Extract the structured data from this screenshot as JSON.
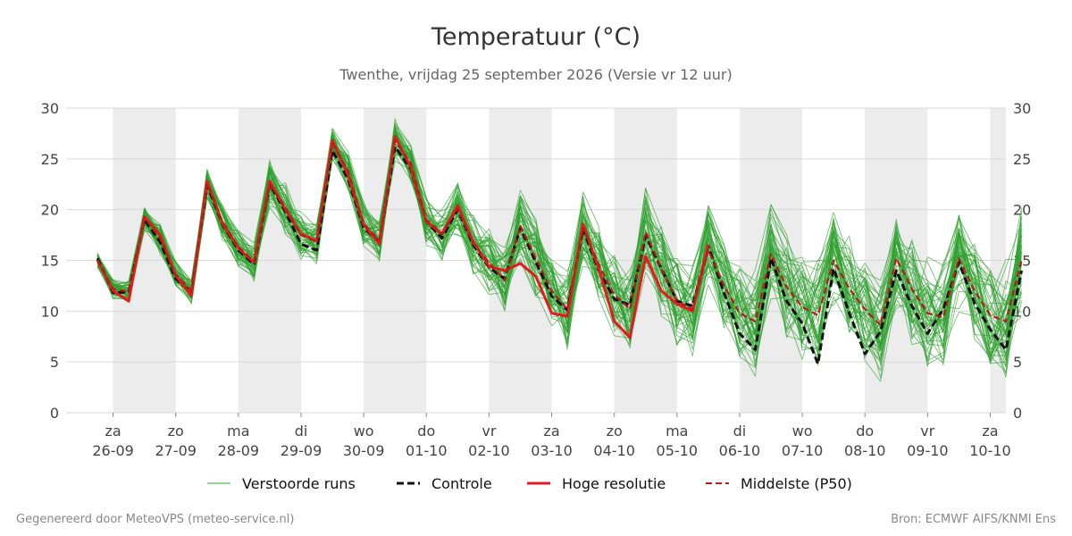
{
  "title": "Temperatuur (°C)",
  "subtitle": "Twenthe, vrijdag 25 september 2026 (Versie vr 12 uur)",
  "footer_left": "Gegenereerd door MeteoVPS (meteo-service.nl)",
  "footer_right": "Bron: ECMWF AIFS/KNMI Ens",
  "colors": {
    "ensemble": "#2ca02c",
    "control": "#111111",
    "high_res": "#e41a1c",
    "median": "#b71c1c",
    "band": "#ececec",
    "grid": "#d9d9d9"
  },
  "chart_data": {
    "type": "line",
    "xlabel": "",
    "ylabel": "",
    "x_unit": "days",
    "xlim": [
      -0.75,
      14.25
    ],
    "ylim": [
      0,
      30
    ],
    "yticks": [
      0,
      5,
      10,
      15,
      20,
      25,
      30
    ],
    "grid": true,
    "legend_position": "bottom",
    "weekend_bands": [
      [
        0,
        1
      ],
      [
        2,
        3
      ],
      [
        4,
        5
      ],
      [
        6,
        7
      ],
      [
        8,
        9
      ],
      [
        10,
        11
      ],
      [
        12,
        13
      ],
      [
        14,
        14.25
      ]
    ],
    "x_ticks": [
      {
        "day": "za",
        "date": "26-09"
      },
      {
        "day": "zo",
        "date": "27-09"
      },
      {
        "day": "ma",
        "date": "28-09"
      },
      {
        "day": "di",
        "date": "29-09"
      },
      {
        "day": "wo",
        "date": "30-09"
      },
      {
        "day": "do",
        "date": "01-10"
      },
      {
        "day": "vr",
        "date": "02-10"
      },
      {
        "day": "za",
        "date": "03-10"
      },
      {
        "day": "zo",
        "date": "04-10"
      },
      {
        "day": "ma",
        "date": "05-10"
      },
      {
        "day": "di",
        "date": "06-10"
      },
      {
        "day": "wo",
        "date": "07-10"
      },
      {
        "day": "do",
        "date": "08-10"
      },
      {
        "day": "vr",
        "date": "09-10"
      },
      {
        "day": "za",
        "date": "10-10"
      }
    ],
    "x_step": 0.25,
    "x_start": -0.25,
    "legend": [
      "Verstoorde runs",
      "Controle",
      "Hoge resolutie",
      "Middelste (P50)"
    ],
    "series": [
      {
        "name": "Controle",
        "style": "dashed",
        "values": [
          15.2,
          11.8,
          11.9,
          19.0,
          16.8,
          13.2,
          11.8,
          22.4,
          18.5,
          16.0,
          14.6,
          22.5,
          19.8,
          16.6,
          16.0,
          25.8,
          23.0,
          18.2,
          16.8,
          26.2,
          24.0,
          18.8,
          17.2,
          20.0,
          16.5,
          14.3,
          13.2,
          18.2,
          14.8,
          11.5,
          10.1,
          18.1,
          14.0,
          11.2,
          10.6,
          17.4,
          14.2,
          11.0,
          10.5,
          16.4,
          11.8,
          7.8,
          6.2,
          15.2,
          11.0,
          8.8,
          4.8,
          14.2,
          9.8,
          5.8,
          8.0,
          14.0,
          10.5,
          7.8,
          10.2,
          14.8,
          10.8,
          8.2,
          6.2,
          14.0
        ]
      },
      {
        "name": "Hoge resolutie",
        "style": "solid",
        "values": [
          15.0,
          12.0,
          11.0,
          19.3,
          17.5,
          13.5,
          11.5,
          22.8,
          18.6,
          16.2,
          14.8,
          22.8,
          20.0,
          17.6,
          16.9,
          26.8,
          23.4,
          18.5,
          16.6,
          27.2,
          24.2,
          18.8,
          17.6,
          20.4,
          16.8,
          14.4,
          14.0,
          14.7,
          13.4,
          9.8,
          9.5,
          18.6,
          14.2,
          9.0,
          7.4,
          15.4,
          12.0,
          10.7,
          10.0,
          16.6
        ]
      },
      {
        "name": "Middelste (P50)",
        "style": "dashed",
        "values": [
          15.0,
          12.2,
          11.9,
          19.2,
          17.2,
          13.6,
          12.0,
          22.6,
          18.8,
          16.3,
          14.9,
          22.5,
          20.2,
          17.5,
          16.8,
          26.5,
          23.8,
          18.6,
          17.0,
          26.8,
          24.6,
          19.0,
          17.6,
          20.1,
          16.6,
          14.8,
          13.0,
          18.4,
          15.2,
          12.0,
          10.2,
          18.2,
          14.6,
          11.6,
          10.2,
          17.8,
          14.2,
          11.0,
          10.2,
          16.0,
          12.5,
          9.8,
          9.0,
          15.6,
          12.4,
          10.4,
          9.6,
          15.0,
          12.2,
          10.2,
          8.6,
          15.2,
          12.2,
          9.8,
          9.4,
          15.2,
          12.0,
          9.6,
          9.0,
          15.0
        ]
      }
    ],
    "ensemble": {
      "name": "Verstoorde runs",
      "members": 50,
      "spread": [
        0.6,
        0.8,
        0.9,
        1.0,
        1.2,
        1.0,
        1.0,
        1.2,
        1.4,
        1.5,
        1.5,
        1.8,
        2.0,
        2.0,
        1.8,
        1.2,
        1.5,
        1.8,
        1.8,
        1.6,
        1.8,
        2.0,
        2.2,
        2.2,
        2.4,
        2.6,
        2.8,
        2.8,
        3.0,
        3.0,
        3.2,
        3.2,
        3.2,
        3.4,
        3.4,
        3.4,
        3.6,
        3.6,
        3.8,
        3.8,
        3.8,
        3.8,
        4.0,
        4.0,
        4.0,
        4.0,
        4.2,
        4.2,
        4.2,
        4.2,
        4.2,
        4.4,
        4.4,
        4.4,
        4.4,
        4.4,
        4.6,
        4.6,
        4.6,
        4.6
      ]
    }
  }
}
